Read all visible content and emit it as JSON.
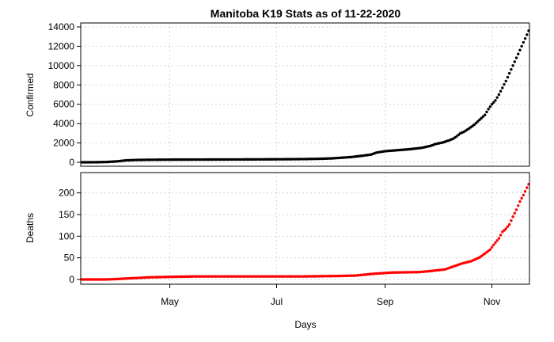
{
  "chart_data": {
    "type": "scatter",
    "title": "Manitoba K19 Stats as of 11-22-2020",
    "xlabel": "Days",
    "x_axis": {
      "kind": "date",
      "start": "2020-03-12",
      "end": "2020-11-22",
      "ticks": [
        {
          "date": "2020-05-01",
          "label": "May"
        },
        {
          "date": "2020-07-01",
          "label": "Jul"
        },
        {
          "date": "2020-09-01",
          "label": "Sep"
        },
        {
          "date": "2020-11-01",
          "label": "Nov"
        }
      ]
    },
    "grid": true,
    "panels": [
      {
        "ylabel": "Confirmed",
        "color": "#000000",
        "ylim": [
          0,
          14000
        ],
        "yticks": [
          0,
          2000,
          4000,
          6000,
          8000,
          10000,
          12000,
          14000
        ],
        "series": [
          {
            "points": [
              [
                "2020-03-12",
                0
              ],
              [
                "2020-03-20",
                10
              ],
              [
                "2020-03-26",
                30
              ],
              [
                "2020-04-01",
                100
              ],
              [
                "2020-04-06",
                200
              ],
              [
                "2020-04-12",
                240
              ],
              [
                "2020-04-20",
                260
              ],
              [
                "2020-05-01",
                275
              ],
              [
                "2020-05-20",
                285
              ],
              [
                "2020-06-10",
                295
              ],
              [
                "2020-06-30",
                310
              ],
              [
                "2020-07-15",
                330
              ],
              [
                "2020-07-25",
                360
              ],
              [
                "2020-08-01",
                400
              ],
              [
                "2020-08-07",
                470
              ],
              [
                "2020-08-13",
                550
              ],
              [
                "2020-08-19",
                680
              ],
              [
                "2020-08-24",
                800
              ],
              [
                "2020-08-27",
                1000
              ],
              [
                "2020-09-01",
                1150
              ],
              [
                "2020-09-08",
                1250
              ],
              [
                "2020-09-15",
                1350
              ],
              [
                "2020-09-22",
                1500
              ],
              [
                "2020-09-27",
                1700
              ],
              [
                "2020-09-30",
                1900
              ],
              [
                "2020-10-04",
                2050
              ],
              [
                "2020-10-08",
                2300
              ],
              [
                "2020-10-10",
                2450
              ],
              [
                "2020-10-12",
                2700
              ],
              [
                "2020-10-14",
                3000
              ],
              [
                "2020-10-16",
                3150
              ],
              [
                "2020-10-19",
                3500
              ],
              [
                "2020-10-22",
                3900
              ],
              [
                "2020-10-25",
                4400
              ],
              [
                "2020-10-28",
                4900
              ],
              [
                "2020-10-30",
                5500
              ],
              [
                "2020-11-01",
                6000
              ],
              [
                "2020-11-03",
                6400
              ],
              [
                "2020-11-05",
                7000
              ],
              [
                "2020-11-07",
                7700
              ],
              [
                "2020-11-09",
                8400
              ],
              [
                "2020-11-11",
                9200
              ],
              [
                "2020-11-13",
                10000
              ],
              [
                "2020-11-15",
                10800
              ],
              [
                "2020-11-17",
                11600
              ],
              [
                "2020-11-19",
                12400
              ],
              [
                "2020-11-21",
                13200
              ],
              [
                "2020-11-22",
                13600
              ]
            ]
          }
        ]
      },
      {
        "ylabel": "Deaths",
        "color": "#ff0000",
        "ylim": [
          0,
          225
        ],
        "yticks": [
          0,
          50,
          100,
          150,
          200
        ],
        "series": [
          {
            "points": [
              [
                "2020-03-12",
                0
              ],
              [
                "2020-03-25",
                0
              ],
              [
                "2020-04-01",
                1
              ],
              [
                "2020-04-10",
                3
              ],
              [
                "2020-04-20",
                5
              ],
              [
                "2020-05-01",
                6
              ],
              [
                "2020-05-15",
                7
              ],
              [
                "2020-06-15",
                7
              ],
              [
                "2020-07-15",
                7
              ],
              [
                "2020-08-05",
                8
              ],
              [
                "2020-08-15",
                9
              ],
              [
                "2020-08-25",
                13
              ],
              [
                "2020-09-05",
                16
              ],
              [
                "2020-09-20",
                17
              ],
              [
                "2020-09-26",
                19
              ],
              [
                "2020-09-30",
                21
              ],
              [
                "2020-10-05",
                23
              ],
              [
                "2020-10-10",
                30
              ],
              [
                "2020-10-15",
                37
              ],
              [
                "2020-10-20",
                42
              ],
              [
                "2020-10-25",
                51
              ],
              [
                "2020-10-28",
                60
              ],
              [
                "2020-10-31",
                69
              ],
              [
                "2020-11-02",
                80
              ],
              [
                "2020-11-05",
                95
              ],
              [
                "2020-11-07",
                110
              ],
              [
                "2020-11-09",
                117
              ],
              [
                "2020-11-11",
                127
              ],
              [
                "2020-11-13",
                145
              ],
              [
                "2020-11-15",
                161
              ],
              [
                "2020-11-17",
                180
              ],
              [
                "2020-11-19",
                195
              ],
              [
                "2020-11-21",
                212
              ],
              [
                "2020-11-22",
                220
              ]
            ]
          }
        ]
      }
    ]
  }
}
